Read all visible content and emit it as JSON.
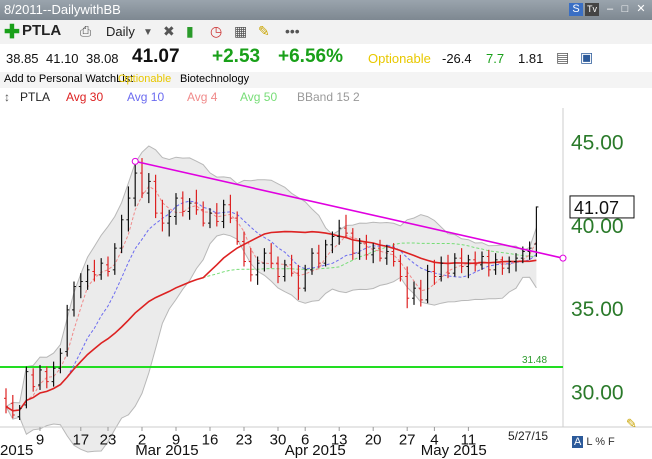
{
  "window": {
    "title": "8/2011--DailywithBB"
  },
  "toolbar": {
    "symbol": "PTLA",
    "period": "Daily",
    "add_icon": "plus-icon",
    "s_badge": "S",
    "tv_badge": "Tv"
  },
  "quote": {
    "open": "38.85",
    "high": "41.10",
    "low": "38.08",
    "last": "41.07",
    "change": "+2.53",
    "change_pct": "+6.56%",
    "optionable": "Optionable",
    "v1": "-26.4",
    "v2": "7.7",
    "v3": "1.81",
    "add_watchlist": "Add to Personal WatchList",
    "optionable2": "Optionable",
    "industry": "Biotechnology",
    "colors": {
      "up": "#19a019",
      "optionable": "#e8c800",
      "neg": "#333333",
      "green2": "#19a019"
    }
  },
  "legend": {
    "items": [
      "PTLA",
      "Avg 30",
      "Avg 10",
      "Avg 4",
      "Avg 50",
      "BBand 15 2"
    ]
  },
  "footer": {
    "date": "5/27/15",
    "flags": [
      "A",
      "L",
      "%",
      "F"
    ]
  },
  "chart_data": {
    "type": "candlestick",
    "ylim": [
      28,
      47
    ],
    "yticks": [
      30,
      35,
      40,
      45
    ],
    "ytick_labels": [
      "30.00",
      "35.00",
      "40.00",
      "45.00"
    ],
    "price_label": "41.07",
    "hline": {
      "value": 31.48,
      "label": "31.48",
      "color": "#22dd22"
    },
    "trendline": {
      "from": [
        "2015-03-03",
        43.8
      ],
      "to": [
        "2015-05-27",
        38.0
      ],
      "color": "#e000e0"
    },
    "xticks": [
      {
        "label": "9",
        "i": 5
      },
      {
        "label": "17",
        "i": 11
      },
      {
        "label": "23",
        "i": 15
      },
      {
        "label": "2",
        "i": 20
      },
      {
        "label": "9",
        "i": 25
      },
      {
        "label": "16",
        "i": 30
      },
      {
        "label": "23",
        "i": 35
      },
      {
        "label": "30",
        "i": 40
      },
      {
        "label": "6",
        "i": 44
      },
      {
        "label": "13",
        "i": 49
      },
      {
        "label": "20",
        "i": 54
      },
      {
        "label": "27",
        "i": 59
      },
      {
        "label": "4",
        "i": 63
      },
      {
        "label": "11",
        "i": 68
      }
    ],
    "month_labels": [
      {
        "label": "2015",
        "i": -1
      },
      {
        "label": "Mar 2015",
        "i": 19
      },
      {
        "label": "Apr 2015",
        "i": 41
      },
      {
        "label": "May 2015",
        "i": 61
      }
    ],
    "colors": {
      "up": "#111111",
      "down": "#dd2222",
      "ma30": "#dd2222",
      "ma10": "#6b6bf0",
      "ma4": "#f08a8a",
      "ma50": "#77dd77",
      "band": "#ebebeb",
      "band_line": "#b8b8b8"
    },
    "series": [
      {
        "name": "PTLA",
        "ohlc": [
          [
            29.6,
            30.2,
            28.7,
            29.1
          ],
          [
            29.3,
            29.8,
            28.4,
            28.6
          ],
          [
            28.5,
            29.2,
            28.3,
            29.0
          ],
          [
            29.2,
            31.5,
            29.0,
            31.2
          ],
          [
            31.0,
            31.4,
            30.0,
            30.3
          ],
          [
            30.4,
            31.6,
            30.1,
            31.3
          ],
          [
            31.2,
            31.5,
            30.2,
            30.6
          ],
          [
            30.6,
            31.8,
            30.3,
            31.4
          ],
          [
            31.4,
            32.6,
            31.1,
            32.3
          ],
          [
            32.4,
            35.2,
            32.1,
            34.9
          ],
          [
            34.9,
            36.6,
            34.5,
            36.3
          ],
          [
            36.3,
            37.1,
            35.6,
            36.6
          ],
          [
            36.6,
            37.6,
            36.1,
            37.3
          ],
          [
            37.2,
            37.9,
            36.6,
            37.0
          ],
          [
            37.0,
            38.0,
            36.7,
            37.7
          ],
          [
            37.6,
            38.1,
            36.9,
            37.2
          ],
          [
            37.3,
            38.9,
            37.0,
            38.6
          ],
          [
            38.6,
            40.6,
            38.3,
            40.3
          ],
          [
            40.3,
            42.3,
            39.6,
            41.6
          ],
          [
            41.6,
            43.6,
            41.1,
            43.1
          ],
          [
            43.1,
            44.0,
            41.6,
            41.9
          ],
          [
            41.9,
            43.1,
            41.3,
            42.6
          ],
          [
            42.6,
            43.0,
            40.4,
            40.7
          ],
          [
            40.7,
            41.5,
            39.6,
            40.1
          ],
          [
            40.1,
            40.9,
            39.3,
            40.5
          ],
          [
            40.5,
            41.9,
            40.0,
            41.6
          ],
          [
            41.6,
            42.0,
            40.5,
            40.8
          ],
          [
            40.8,
            41.6,
            40.3,
            41.3
          ],
          [
            41.3,
            42.1,
            40.6,
            40.9
          ],
          [
            40.9,
            41.4,
            39.9,
            40.1
          ],
          [
            40.1,
            41.0,
            39.8,
            40.7
          ],
          [
            40.7,
            41.3,
            39.9,
            40.2
          ],
          [
            40.2,
            41.5,
            39.8,
            41.2
          ],
          [
            41.2,
            41.8,
            40.1,
            40.4
          ],
          [
            40.4,
            40.8,
            38.8,
            39.0
          ],
          [
            39.0,
            39.6,
            37.5,
            37.8
          ],
          [
            37.8,
            38.6,
            36.6,
            37.0
          ],
          [
            37.0,
            38.1,
            36.4,
            37.7
          ],
          [
            37.7,
            38.6,
            37.2,
            38.3
          ],
          [
            38.3,
            38.9,
            37.4,
            37.7
          ],
          [
            37.7,
            38.1,
            36.5,
            36.9
          ],
          [
            36.9,
            37.9,
            36.6,
            37.6
          ],
          [
            37.6,
            38.2,
            36.9,
            37.1
          ],
          [
            37.1,
            37.6,
            35.5,
            36.2
          ],
          [
            36.2,
            37.6,
            36.0,
            37.3
          ],
          [
            37.3,
            38.6,
            37.0,
            38.3
          ],
          [
            38.3,
            38.8,
            37.4,
            37.7
          ],
          [
            37.7,
            39.1,
            37.5,
            38.8
          ],
          [
            38.8,
            39.6,
            38.3,
            39.3
          ],
          [
            39.3,
            40.3,
            38.8,
            39.8
          ],
          [
            39.8,
            40.6,
            39.2,
            39.5
          ],
          [
            39.5,
            39.8,
            37.9,
            38.3
          ],
          [
            38.3,
            39.2,
            37.9,
            38.9
          ],
          [
            38.9,
            39.4,
            37.9,
            38.2
          ],
          [
            38.2,
            38.9,
            37.7,
            38.6
          ],
          [
            38.6,
            39.1,
            37.8,
            38.0
          ],
          [
            38.0,
            38.8,
            37.6,
            38.4
          ],
          [
            38.4,
            38.9,
            37.5,
            37.8
          ],
          [
            37.8,
            38.2,
            36.6,
            36.9
          ],
          [
            36.9,
            37.5,
            35.0,
            35.6
          ],
          [
            35.6,
            36.6,
            35.2,
            36.2
          ],
          [
            36.2,
            36.7,
            35.1,
            35.5
          ],
          [
            35.5,
            37.6,
            35.3,
            37.2
          ],
          [
            37.2,
            37.9,
            36.4,
            36.9
          ],
          [
            36.9,
            38.1,
            36.6,
            37.7
          ],
          [
            37.7,
            38.2,
            36.8,
            37.1
          ],
          [
            37.1,
            38.3,
            36.9,
            38.0
          ],
          [
            38.0,
            38.6,
            37.1,
            37.5
          ],
          [
            37.5,
            38.2,
            36.8,
            37.9
          ],
          [
            37.9,
            38.4,
            37.2,
            37.6
          ],
          [
            37.6,
            38.4,
            37.3,
            38.1
          ],
          [
            38.1,
            38.5,
            36.9,
            37.3
          ],
          [
            37.3,
            38.3,
            37.0,
            37.9
          ],
          [
            37.9,
            38.1,
            37.0,
            37.4
          ],
          [
            37.4,
            38.1,
            37.1,
            37.8
          ],
          [
            37.8,
            38.3,
            37.2,
            38.0
          ],
          [
            38.0,
            38.7,
            37.7,
            38.4
          ],
          [
            38.4,
            39.0,
            37.9,
            38.6
          ],
          [
            38.85,
            41.1,
            38.08,
            41.07
          ]
        ]
      }
    ]
  }
}
